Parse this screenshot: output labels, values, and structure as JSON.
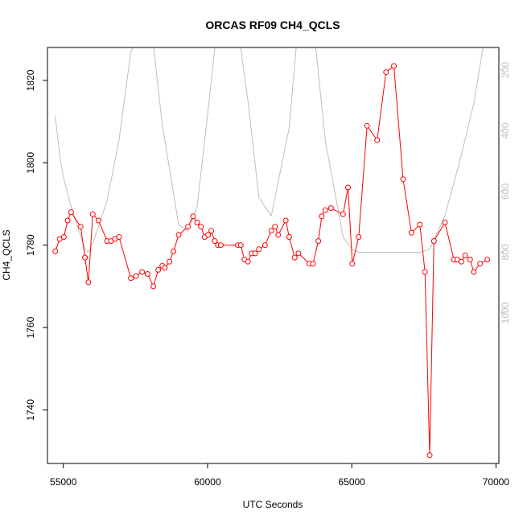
{
  "chart_data": {
    "type": "line",
    "title": "ORCAS RF09 CH4_QCLS",
    "xlabel": "UTC Seconds",
    "ylabel": "CH4_QCLS",
    "xlim": [
      54450,
      70100
    ],
    "ylim": [
      1727,
      1828
    ],
    "x_ticks": [
      55000,
      60000,
      65000,
      70000
    ],
    "y_ticks": [
      1740,
      1760,
      1780,
      1800,
      1820
    ],
    "y2_ticks": [
      200,
      400,
      600,
      800,
      1000
    ],
    "y2_reversed": true,
    "colors": {
      "primary": "#ff0000",
      "secondary": "#bebebe",
      "axis": "#000000"
    },
    "series": [
      {
        "role": "primary",
        "marker": "open-circle",
        "x": [
          54720,
          54870,
          55020,
          55150,
          55270,
          55600,
          55750,
          55870,
          56020,
          56220,
          56520,
          56650,
          56790,
          56930,
          57340,
          57520,
          57730,
          57920,
          58120,
          58290,
          58430,
          58520,
          58680,
          58820,
          59000,
          59320,
          59500,
          59640,
          59770,
          59900,
          60020,
          60130,
          60250,
          60360,
          60460,
          61050,
          61150,
          61280,
          61400,
          61530,
          61650,
          61780,
          61990,
          62210,
          62340,
          62450,
          62710,
          62830,
          63020,
          63150,
          63530,
          63660,
          63840,
          63960,
          64080,
          64280,
          64700,
          64870,
          65020,
          65240,
          65530,
          65880,
          66190,
          66460,
          66780,
          67070,
          67360,
          67540,
          67700,
          67850,
          68230,
          68540,
          68660,
          68800,
          68930,
          69100,
          69230,
          69450,
          69700
        ],
        "y": [
          1778.5,
          1781.5,
          1782.0,
          1786.0,
          1788.0,
          1784.5,
          1777.0,
          1771.0,
          1787.5,
          1786.0,
          1781.0,
          1781.0,
          1781.5,
          1782.0,
          1772.0,
          1772.5,
          1773.5,
          1773.0,
          1770.0,
          1774.0,
          1775.0,
          1774.5,
          1776.0,
          1778.5,
          1782.5,
          1784.5,
          1787.0,
          1785.5,
          1784.5,
          1782.0,
          1782.5,
          1783.5,
          1781.0,
          1780.0,
          1780.0,
          1780.0,
          1780.0,
          1776.5,
          1776.0,
          1778.0,
          1778.0,
          1779.0,
          1780.0,
          1783.5,
          1784.5,
          1782.5,
          1786.0,
          1782.0,
          1777.0,
          1778.0,
          1775.5,
          1775.5,
          1781.0,
          1787.0,
          1788.5,
          1789.0,
          1787.5,
          1794.0,
          1775.5,
          1782.0,
          1809.0,
          1805.5,
          1822.0,
          1823.5,
          1796.0,
          1783.0,
          1785.0,
          1773.5,
          1729.0,
          1781.0,
          1785.5,
          1776.5,
          1776.5,
          1776.0,
          1777.5,
          1776.5,
          1773.5,
          1775.5,
          1776.5
        ]
      },
      {
        "role": "secondary",
        "marker": "none",
        "x": [
          54720,
          54870,
          55020,
          55270,
          55750,
          55870,
          56020,
          56520,
          56930,
          57340,
          57920,
          58120,
          58430,
          59000,
          59320,
          59640,
          60020,
          60250,
          60460,
          61050,
          61400,
          61780,
          62210,
          62830,
          63150,
          63660,
          64080,
          64700,
          65020,
          65240,
          65530,
          66190,
          66780,
          67360,
          67700,
          68230,
          68800,
          69230,
          69700
        ],
        "y": [
          350,
          480,
          560,
          650,
          790,
          800,
          770,
          630,
          430,
          140,
          30,
          120,
          380,
          710,
          730,
          650,
          330,
          130,
          30,
          60,
          300,
          620,
          680,
          390,
          40,
          40,
          430,
          750,
          790,
          800,
          800,
          800,
          800,
          800,
          790,
          680,
          480,
          310,
          40
        ]
      }
    ]
  }
}
